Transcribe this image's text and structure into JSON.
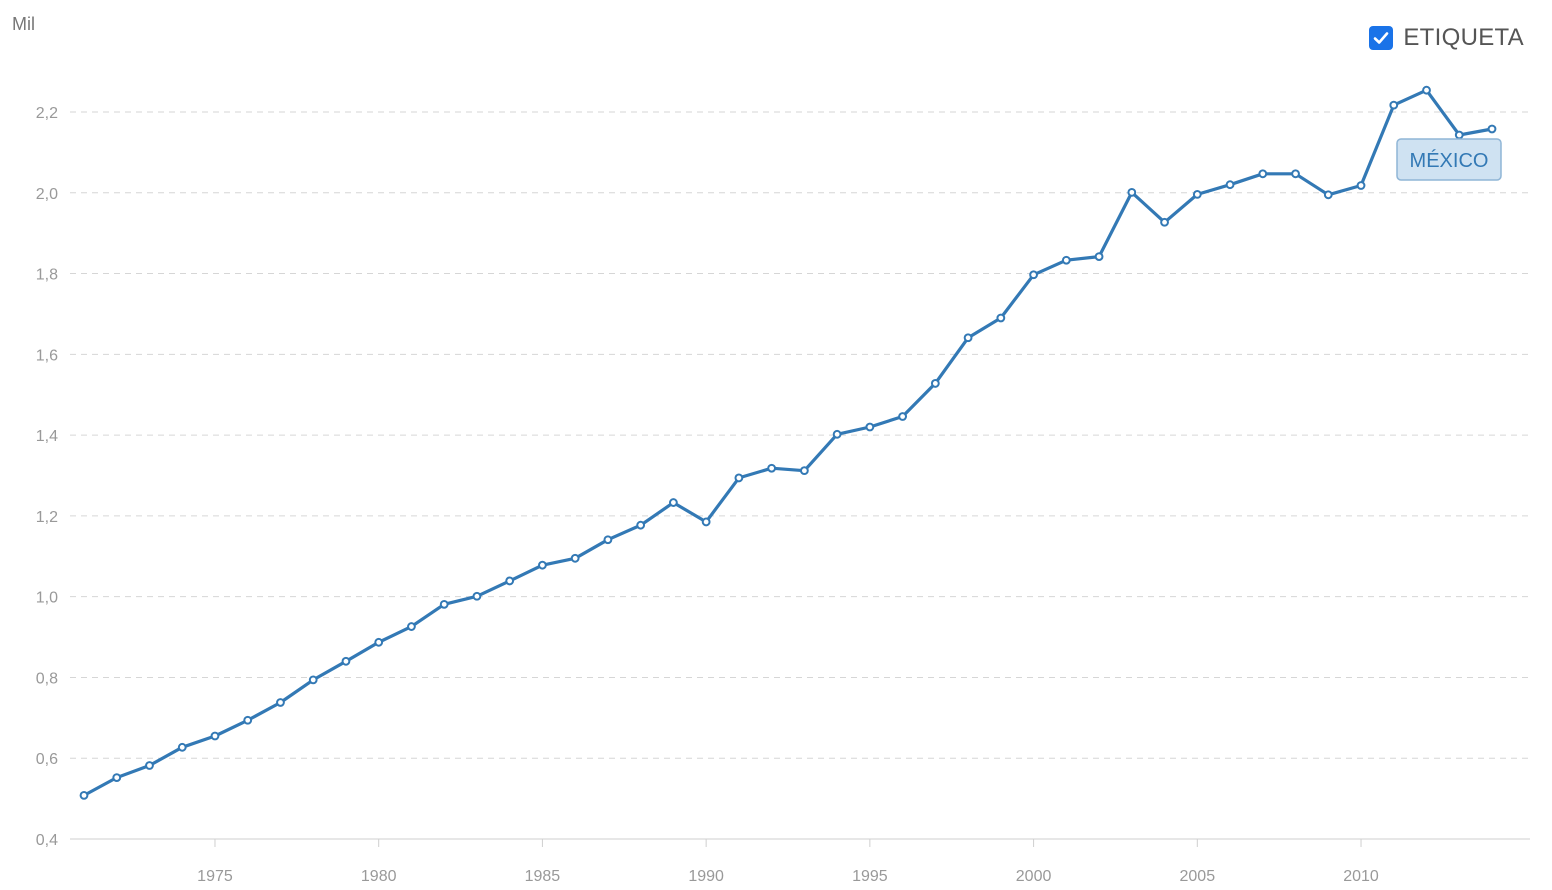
{
  "unit_label": "Mil",
  "legend": {
    "label": "ETIQUETA",
    "checked": true
  },
  "colors": {
    "series": "#3379b5",
    "grid": "#d6d6d6",
    "tick_text": "#999999",
    "series_label_bg": "#cfe2f2",
    "series_label_border": "#8fb5d6",
    "checkbox": "#1a73e8"
  },
  "chart_data": {
    "type": "line",
    "title": "",
    "xlabel": "",
    "ylabel": "Mil",
    "xlim": [
      1971,
      2014
    ],
    "ylim": [
      0.4,
      2.2
    ],
    "grid": true,
    "y_ticks": [
      "0,4",
      "0,6",
      "0,8",
      "1,0",
      "1,2",
      "1,4",
      "1,6",
      "1,8",
      "2,0",
      "2,2"
    ],
    "y_tick_values": [
      0.4,
      0.6,
      0.8,
      1.0,
      1.2,
      1.4,
      1.6,
      1.8,
      2.0,
      2.2
    ],
    "x_ticks": [
      "1975",
      "1980",
      "1985",
      "1990",
      "1995",
      "2000",
      "2005",
      "2010"
    ],
    "x_tick_values": [
      1975,
      1980,
      1985,
      1990,
      1995,
      2000,
      2005,
      2010
    ],
    "series": [
      {
        "name": "MÉXICO",
        "x": [
          1971,
          1972,
          1973,
          1974,
          1975,
          1976,
          1977,
          1978,
          1979,
          1980,
          1981,
          1982,
          1983,
          1984,
          1985,
          1986,
          1987,
          1988,
          1989,
          1990,
          1991,
          1992,
          1993,
          1994,
          1995,
          1996,
          1997,
          1998,
          1999,
          2000,
          2001,
          2002,
          2003,
          2004,
          2005,
          2006,
          2007,
          2008,
          2009,
          2010,
          2011,
          2012,
          2013,
          2014
        ],
        "values": [
          0.508,
          0.552,
          0.582,
          0.627,
          0.655,
          0.694,
          0.738,
          0.794,
          0.84,
          0.887,
          0.926,
          0.981,
          1.001,
          1.039,
          1.078,
          1.095,
          1.141,
          1.177,
          1.233,
          1.185,
          1.294,
          1.318,
          1.312,
          1.402,
          1.42,
          1.446,
          1.528,
          1.641,
          1.69,
          1.797,
          1.833,
          1.842,
          2.001,
          1.927,
          1.996,
          2.02,
          2.047,
          2.047,
          1.995,
          2.018,
          2.217,
          2.254,
          2.143,
          2.158
        ]
      }
    ]
  }
}
